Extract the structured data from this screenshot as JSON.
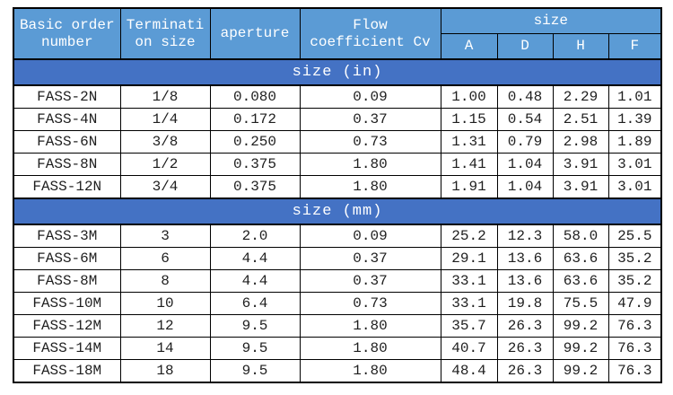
{
  "colors": {
    "header_bg": "#5b9bd5",
    "section_bg": "#4472c4",
    "header_text": "#ffffff",
    "body_text": "#1f1f1f",
    "grid": "#000000"
  },
  "chart_data": {
    "type": "table",
    "columns": {
      "basic_order": [
        "Basic order",
        "number"
      ],
      "termination": [
        "Terminati",
        "on size"
      ],
      "aperture": "aperture",
      "flow_cv": [
        "Flow",
        "coefficient Cv"
      ],
      "size_group": "size",
      "size_sub": [
        "A",
        "D",
        "H",
        "F"
      ]
    },
    "column_keys": [
      "order",
      "termination",
      "aperture",
      "cv",
      "a",
      "d",
      "h",
      "f"
    ],
    "sections": [
      {
        "title": "size (in)",
        "rows": [
          [
            "FASS-2N",
            "1/8",
            "0.080",
            "0.09",
            "1.00",
            "0.48",
            "2.29",
            "1.01"
          ],
          [
            "FASS-4N",
            "1/4",
            "0.172",
            "0.37",
            "1.15",
            "0.54",
            "2.51",
            "1.39"
          ],
          [
            "FASS-6N",
            "3/8",
            "0.250",
            "0.73",
            "1.31",
            "0.79",
            "2.98",
            "1.89"
          ],
          [
            "FASS-8N",
            "1/2",
            "0.375",
            "1.80",
            "1.41",
            "1.04",
            "3.91",
            "3.01"
          ],
          [
            "FASS-12N",
            "3/4",
            "0.375",
            "1.80",
            "1.91",
            "1.04",
            "3.91",
            "3.01"
          ]
        ]
      },
      {
        "title": "size (mm)",
        "rows": [
          [
            "FASS-3M",
            "3",
            "2.0",
            "0.09",
            "25.2",
            "12.3",
            "58.0",
            "25.5"
          ],
          [
            "FASS-6M",
            "6",
            "4.4",
            "0.37",
            "29.1",
            "13.6",
            "63.6",
            "35.2"
          ],
          [
            "FASS-8M",
            "8",
            "4.4",
            "0.37",
            "33.1",
            "13.6",
            "63.6",
            "35.2"
          ],
          [
            "FASS-10M",
            "10",
            "6.4",
            "0.73",
            "33.1",
            "19.8",
            "75.5",
            "47.9"
          ],
          [
            "FASS-12M",
            "12",
            "9.5",
            "1.80",
            "35.7",
            "26.3",
            "99.2",
            "76.3"
          ],
          [
            "FASS-14M",
            "14",
            "9.5",
            "1.80",
            "40.7",
            "26.3",
            "99.2",
            "76.3"
          ],
          [
            "FASS-18M",
            "18",
            "9.5",
            "1.80",
            "48.4",
            "26.3",
            "99.2",
            "76.3"
          ]
        ]
      }
    ]
  }
}
